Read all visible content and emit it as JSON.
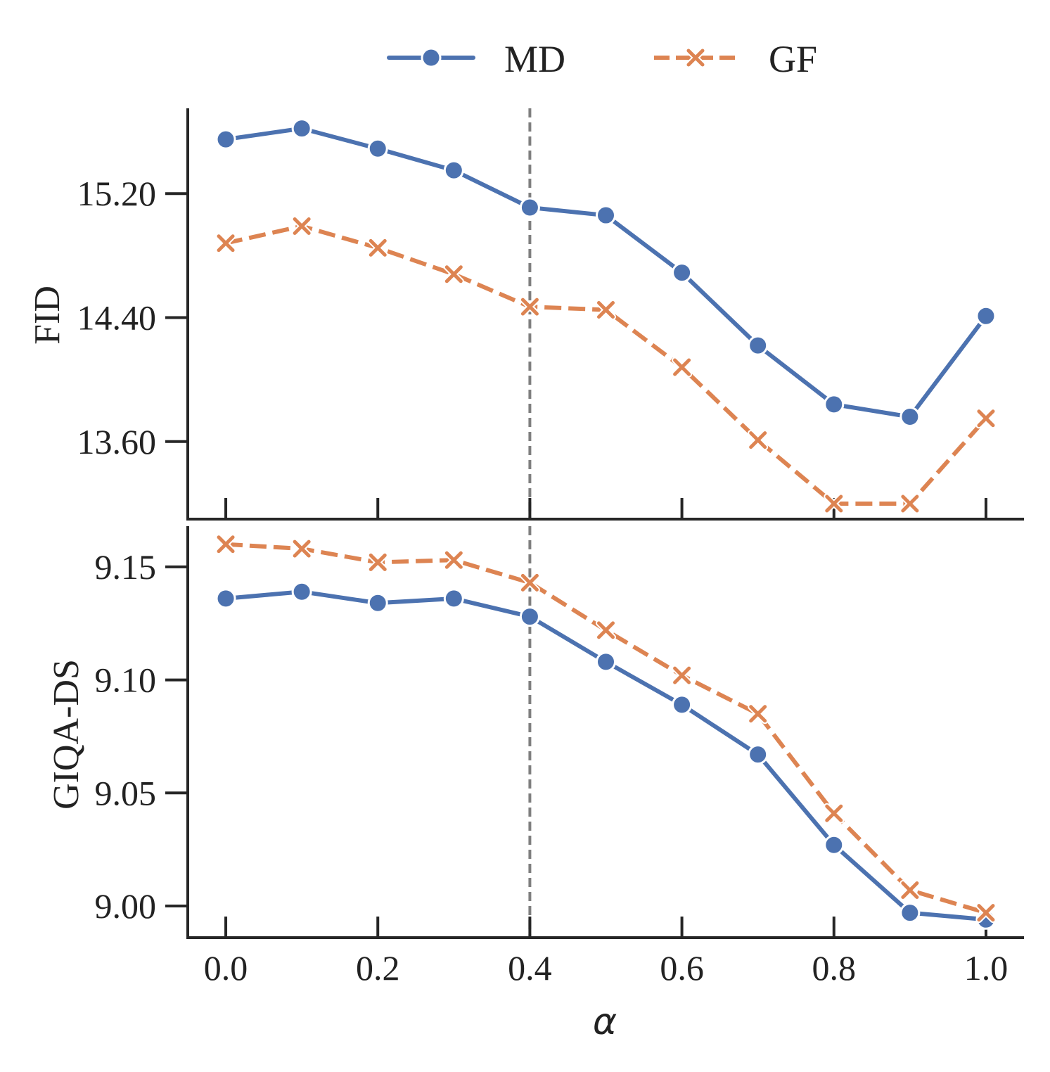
{
  "chart_data": [
    {
      "type": "line",
      "panel": "top",
      "ylabel": "FID",
      "xlabel": "",
      "x": [
        0.0,
        0.1,
        0.2,
        0.3,
        0.4,
        0.5,
        0.6,
        0.7,
        0.8,
        0.9,
        1.0
      ],
      "yticks": [
        13.6,
        14.4,
        15.2
      ],
      "ytick_labels": [
        "13.60",
        "14.40",
        "15.20"
      ],
      "ylim": [
        13.1,
        15.75
      ],
      "series": [
        {
          "name": "MD",
          "values": [
            15.55,
            15.62,
            15.49,
            15.35,
            15.11,
            15.06,
            14.69,
            14.22,
            13.84,
            13.76,
            14.41
          ]
        },
        {
          "name": "GF",
          "values": [
            14.88,
            14.99,
            14.85,
            14.68,
            14.47,
            14.45,
            14.08,
            13.61,
            13.2,
            13.2,
            13.75
          ]
        }
      ],
      "reference_line_x": 0.4
    },
    {
      "type": "line",
      "panel": "bottom",
      "ylabel": "GIQA-DS",
      "xlabel": "α",
      "x": [
        0.0,
        0.1,
        0.2,
        0.3,
        0.4,
        0.5,
        0.6,
        0.7,
        0.8,
        0.9,
        1.0
      ],
      "xticks": [
        0.0,
        0.2,
        0.4,
        0.6,
        0.8,
        1.0
      ],
      "xtick_labels": [
        "0.0",
        "0.2",
        "0.4",
        "0.6",
        "0.8",
        "1.0"
      ],
      "xlim": [
        -0.05,
        1.05
      ],
      "yticks": [
        9.0,
        9.05,
        9.1,
        9.15
      ],
      "ytick_labels": [
        "9.00",
        "9.05",
        "9.10",
        "9.15"
      ],
      "ylim": [
        8.986,
        9.168
      ],
      "series": [
        {
          "name": "MD",
          "values": [
            9.136,
            9.139,
            9.134,
            9.136,
            9.128,
            9.108,
            9.089,
            9.067,
            9.027,
            8.997,
            8.994
          ]
        },
        {
          "name": "GF",
          "values": [
            9.16,
            9.158,
            9.152,
            9.153,
            9.143,
            9.122,
            9.102,
            9.085,
            9.041,
            9.007,
            8.997
          ]
        }
      ],
      "reference_line_x": 0.4
    }
  ],
  "legend": {
    "placement": "top-center",
    "entries": [
      {
        "name": "MD",
        "label": "MD"
      },
      {
        "name": "GF",
        "label": "GF"
      }
    ]
  },
  "colors": {
    "MD": "#4c72b0",
    "GF": "#dd8452",
    "axis": "#262626",
    "reference_line": "#7f7f7f"
  }
}
